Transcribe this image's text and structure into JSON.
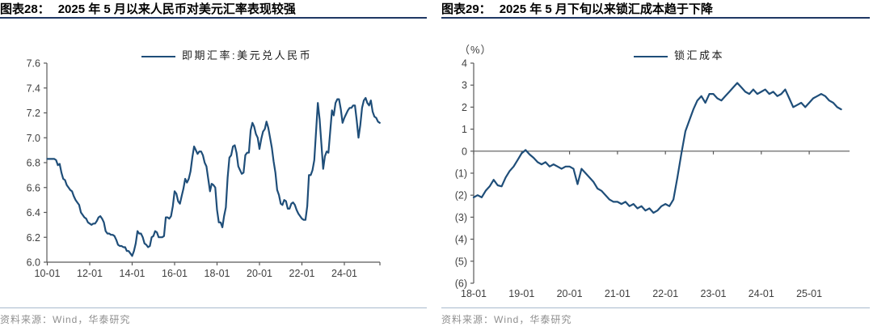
{
  "colors": {
    "series": "#1F4E79",
    "axis": "#595959",
    "tick_label": "#3F3F3F",
    "title_rule": "#1F3864",
    "source_rule": "#A9BACD",
    "source_text": "#8F8F8F"
  },
  "charts": [
    {
      "figure_label": "图表28：",
      "title": "2025 年 5 月以来人民币对美元汇率表现较强",
      "legend": "即期汇率:美元兑人民币",
      "unit_label": "",
      "source": "资料来源：Wind，华泰研究"
    },
    {
      "figure_label": "图表29：",
      "title": "2025 年 5 月下旬以来锁汇成本趋于下降",
      "legend": "锁汇成本",
      "unit_label": "（%）",
      "source": "资料来源：Wind，华泰研究"
    }
  ],
  "chart_data": [
    {
      "type": "line",
      "title": "2025 年 5 月以来人民币对美元汇率表现较强",
      "xlabel": "",
      "ylabel": "",
      "legend_position": "top",
      "grid": false,
      "x_start_year": 2010,
      "points_per_year": 12,
      "ylim": [
        6.0,
        7.6
      ],
      "y_tick_values": [
        7.6,
        7.4,
        7.2,
        7.0,
        6.8,
        6.6,
        6.4,
        6.2,
        6.0
      ],
      "y_tick_labels": [
        "7.6",
        "7.4",
        "7.2",
        "7.0",
        "6.8",
        "6.6",
        "6.4",
        "6.2",
        "6.0"
      ],
      "x_tick_years": [
        2010,
        2012,
        2014,
        2016,
        2018,
        2020,
        2022,
        2024
      ],
      "x_tick_labels": [
        "10-01",
        "12-01",
        "14-01",
        "16-01",
        "18-01",
        "20-01",
        "22-01",
        "24-01"
      ],
      "series": [
        {
          "name": "即期汇率:美元兑人民币",
          "values": [
            6.83,
            6.83,
            6.83,
            6.83,
            6.83,
            6.82,
            6.78,
            6.79,
            6.72,
            6.67,
            6.66,
            6.62,
            6.6,
            6.58,
            6.57,
            6.53,
            6.5,
            6.48,
            6.46,
            6.4,
            6.38,
            6.36,
            6.35,
            6.32,
            6.31,
            6.3,
            6.31,
            6.31,
            6.33,
            6.36,
            6.37,
            6.35,
            6.32,
            6.25,
            6.23,
            6.23,
            6.22,
            6.22,
            6.21,
            6.18,
            6.14,
            6.13,
            6.13,
            6.12,
            6.12,
            6.09,
            6.09,
            6.07,
            6.05,
            6.09,
            6.15,
            6.25,
            6.23,
            6.23,
            6.2,
            6.15,
            6.14,
            6.12,
            6.13,
            6.2,
            6.21,
            6.25,
            6.24,
            6.2,
            6.2,
            6.2,
            6.21,
            6.36,
            6.36,
            6.35,
            6.37,
            6.45,
            6.57,
            6.55,
            6.49,
            6.47,
            6.53,
            6.59,
            6.67,
            6.64,
            6.67,
            6.73,
            6.84,
            6.93,
            6.9,
            6.87,
            6.89,
            6.89,
            6.86,
            6.8,
            6.77,
            6.67,
            6.57,
            6.63,
            6.62,
            6.6,
            6.42,
            6.32,
            6.32,
            6.28,
            6.37,
            6.44,
            6.68,
            6.84,
            6.86,
            6.93,
            6.94,
            6.88,
            6.77,
            6.74,
            6.71,
            6.72,
            6.86,
            6.88,
            6.88,
            7.06,
            7.12,
            7.09,
            7.03,
            7.0,
            6.91,
            6.99,
            7.05,
            7.07,
            7.13,
            7.08,
            7.0,
            6.92,
            6.81,
            6.72,
            6.58,
            6.54,
            6.47,
            6.46,
            6.5,
            6.49,
            6.43,
            6.43,
            6.47,
            6.48,
            6.46,
            6.42,
            6.39,
            6.37,
            6.35,
            6.34,
            6.34,
            6.45,
            6.7,
            6.7,
            6.74,
            6.82,
            7.05,
            7.28,
            7.15,
            6.95,
            6.75,
            6.85,
            6.89,
            6.88,
            7.05,
            7.22,
            7.18,
            7.28,
            7.31,
            7.31,
            7.23,
            7.12,
            7.16,
            7.19,
            7.22,
            7.24,
            7.24,
            7.26,
            7.26,
            7.14,
            7.0,
            7.1,
            7.24,
            7.3,
            7.32,
            7.28,
            7.26,
            7.3,
            7.21,
            7.17,
            7.16,
            7.13,
            7.12
          ]
        }
      ]
    },
    {
      "type": "line",
      "title": "2025 年 5 月下旬以来锁汇成本趋于下降",
      "xlabel": "",
      "ylabel": "（%）",
      "legend_position": "top",
      "grid": false,
      "x_start_year": 2018,
      "points_per_year": 12,
      "ylim": [
        -6,
        4
      ],
      "y_tick_values": [
        4,
        3,
        2,
        1,
        0,
        -1,
        -2,
        -3,
        -4,
        -5,
        -6
      ],
      "y_tick_labels": [
        "4",
        "3",
        "2",
        "1",
        "0",
        "(1)",
        "(2)",
        "(3)",
        "(4)",
        "(5)",
        "(6)"
      ],
      "x_tick_years": [
        2018,
        2019,
        2020,
        2021,
        2022,
        2023,
        2024,
        2025
      ],
      "x_tick_labels": [
        "18-01",
        "19-01",
        "20-01",
        "21-01",
        "22-01",
        "23-01",
        "24-01",
        "25-01"
      ],
      "series": [
        {
          "name": "锁汇成本",
          "values": [
            -2.1,
            -2.0,
            -2.1,
            -1.8,
            -1.6,
            -1.3,
            -1.55,
            -1.6,
            -1.2,
            -0.9,
            -0.7,
            -0.4,
            -0.1,
            0.05,
            -0.15,
            -0.3,
            -0.5,
            -0.6,
            -0.5,
            -0.7,
            -0.6,
            -0.7,
            -0.8,
            -0.7,
            -0.7,
            -0.8,
            -1.5,
            -0.8,
            -1.0,
            -1.2,
            -1.4,
            -1.7,
            -1.8,
            -2.0,
            -2.2,
            -2.3,
            -2.3,
            -2.4,
            -2.3,
            -2.5,
            -2.4,
            -2.6,
            -2.5,
            -2.7,
            -2.6,
            -2.8,
            -2.7,
            -2.5,
            -2.4,
            -2.5,
            -2.2,
            -1.2,
            -0.1,
            0.9,
            1.4,
            1.9,
            2.3,
            2.5,
            2.2,
            2.6,
            2.6,
            2.4,
            2.3,
            2.5,
            2.7,
            2.9,
            3.1,
            2.9,
            2.7,
            2.6,
            2.8,
            2.6,
            2.7,
            2.8,
            2.6,
            2.7,
            2.5,
            2.6,
            2.8,
            2.4,
            2.0,
            2.1,
            2.2,
            2.0,
            2.2,
            2.4,
            2.5,
            2.6,
            2.5,
            2.3,
            2.2,
            2.0,
            1.9
          ]
        }
      ]
    }
  ]
}
